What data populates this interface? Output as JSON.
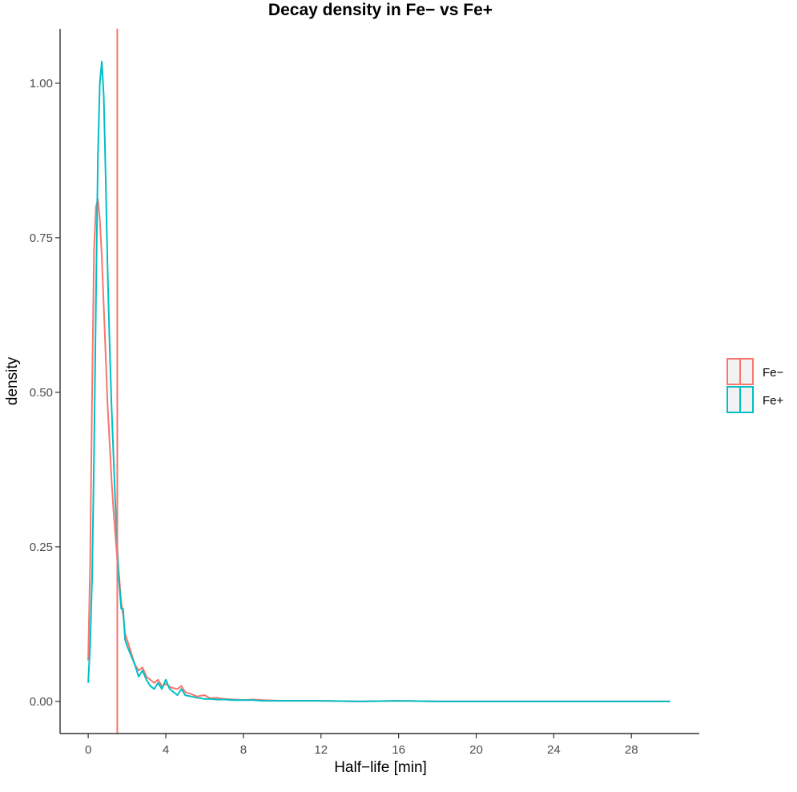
{
  "chart_data": {
    "type": "line",
    "title": "Decay density in Fe− vs Fe+",
    "xlabel": "Half−life [min]",
    "ylabel": "density",
    "xlim": [
      -1.45,
      31.5
    ],
    "ylim": [
      -0.052,
      1.088
    ],
    "x_ticks": [
      0,
      4,
      8,
      12,
      16,
      20,
      24,
      28
    ],
    "x_tick_labels": [
      "0",
      "4",
      "8",
      "12",
      "16",
      "20",
      "24",
      "28"
    ],
    "y_ticks": [
      0,
      0.25,
      0.5,
      0.75,
      1.0
    ],
    "y_tick_labels": [
      "0.00",
      "0.25",
      "0.50",
      "0.75",
      "1.00"
    ],
    "grid": false,
    "legend_position": "right",
    "vline": {
      "x": 1.5,
      "color": "#F8766D"
    },
    "series": [
      {
        "name": "Fe−",
        "color": "#F8766D",
        "x": [
          0.0,
          0.1,
          0.2,
          0.3,
          0.4,
          0.5,
          0.6,
          0.7,
          0.8,
          0.9,
          1.0,
          1.1,
          1.2,
          1.3,
          1.4,
          1.5,
          1.6,
          1.7,
          1.8,
          1.9,
          2.0,
          2.2,
          2.4,
          2.6,
          2.8,
          3.0,
          3.2,
          3.4,
          3.6,
          3.8,
          4.0,
          4.3,
          4.6,
          4.8,
          5.0,
          5.3,
          5.6,
          6.0,
          6.3,
          6.6,
          7.0,
          7.5,
          8.0,
          8.5,
          9.0,
          10.0,
          11.0,
          12.0,
          14.0,
          16.0,
          18.0,
          20.0,
          22.0,
          24.0,
          26.0,
          28.0,
          30.0
        ],
        "y": [
          0.066,
          0.22,
          0.5,
          0.73,
          0.8,
          0.813,
          0.78,
          0.72,
          0.64,
          0.56,
          0.48,
          0.42,
          0.36,
          0.31,
          0.27,
          0.23,
          0.2,
          0.16,
          0.14,
          0.11,
          0.1,
          0.08,
          0.06,
          0.05,
          0.055,
          0.04,
          0.035,
          0.03,
          0.035,
          0.025,
          0.028,
          0.022,
          0.02,
          0.025,
          0.015,
          0.012,
          0.008,
          0.01,
          0.005,
          0.006,
          0.004,
          0.003,
          0.002,
          0.003,
          0.002,
          0.001,
          0.001,
          0.001,
          0.0,
          0.001,
          0.0,
          0.0,
          0.0,
          0.0,
          0.0,
          0.0,
          0.0
        ]
      },
      {
        "name": "Fe+",
        "color": "#00BFC4",
        "x": [
          0.0,
          0.1,
          0.2,
          0.3,
          0.4,
          0.5,
          0.6,
          0.7,
          0.8,
          0.9,
          1.0,
          1.1,
          1.2,
          1.3,
          1.4,
          1.5,
          1.6,
          1.7,
          1.8,
          1.9,
          2.0,
          2.2,
          2.4,
          2.6,
          2.8,
          3.0,
          3.2,
          3.4,
          3.6,
          3.8,
          4.0,
          4.2,
          4.4,
          4.6,
          4.8,
          5.0,
          5.3,
          5.6,
          6.0,
          6.3,
          6.6,
          7.0,
          7.5,
          8.0,
          8.5,
          9.0,
          10.0,
          11.0,
          12.0,
          14.0,
          16.0,
          18.0,
          20.0,
          22.0,
          24.0,
          26.0,
          28.0,
          30.0
        ],
        "y": [
          0.03,
          0.09,
          0.2,
          0.4,
          0.65,
          0.88,
          1.0,
          1.035,
          0.98,
          0.85,
          0.7,
          0.58,
          0.48,
          0.4,
          0.32,
          0.25,
          0.19,
          0.15,
          0.15,
          0.1,
          0.09,
          0.075,
          0.06,
          0.04,
          0.05,
          0.035,
          0.025,
          0.02,
          0.03,
          0.02,
          0.035,
          0.02,
          0.015,
          0.01,
          0.02,
          0.01,
          0.008,
          0.006,
          0.004,
          0.004,
          0.003,
          0.003,
          0.002,
          0.002,
          0.002,
          0.001,
          0.001,
          0.001,
          0.001,
          0.0,
          0.001,
          0.0,
          0.0,
          0.0,
          0.0,
          0.0,
          0.0,
          0.0
        ]
      }
    ]
  }
}
